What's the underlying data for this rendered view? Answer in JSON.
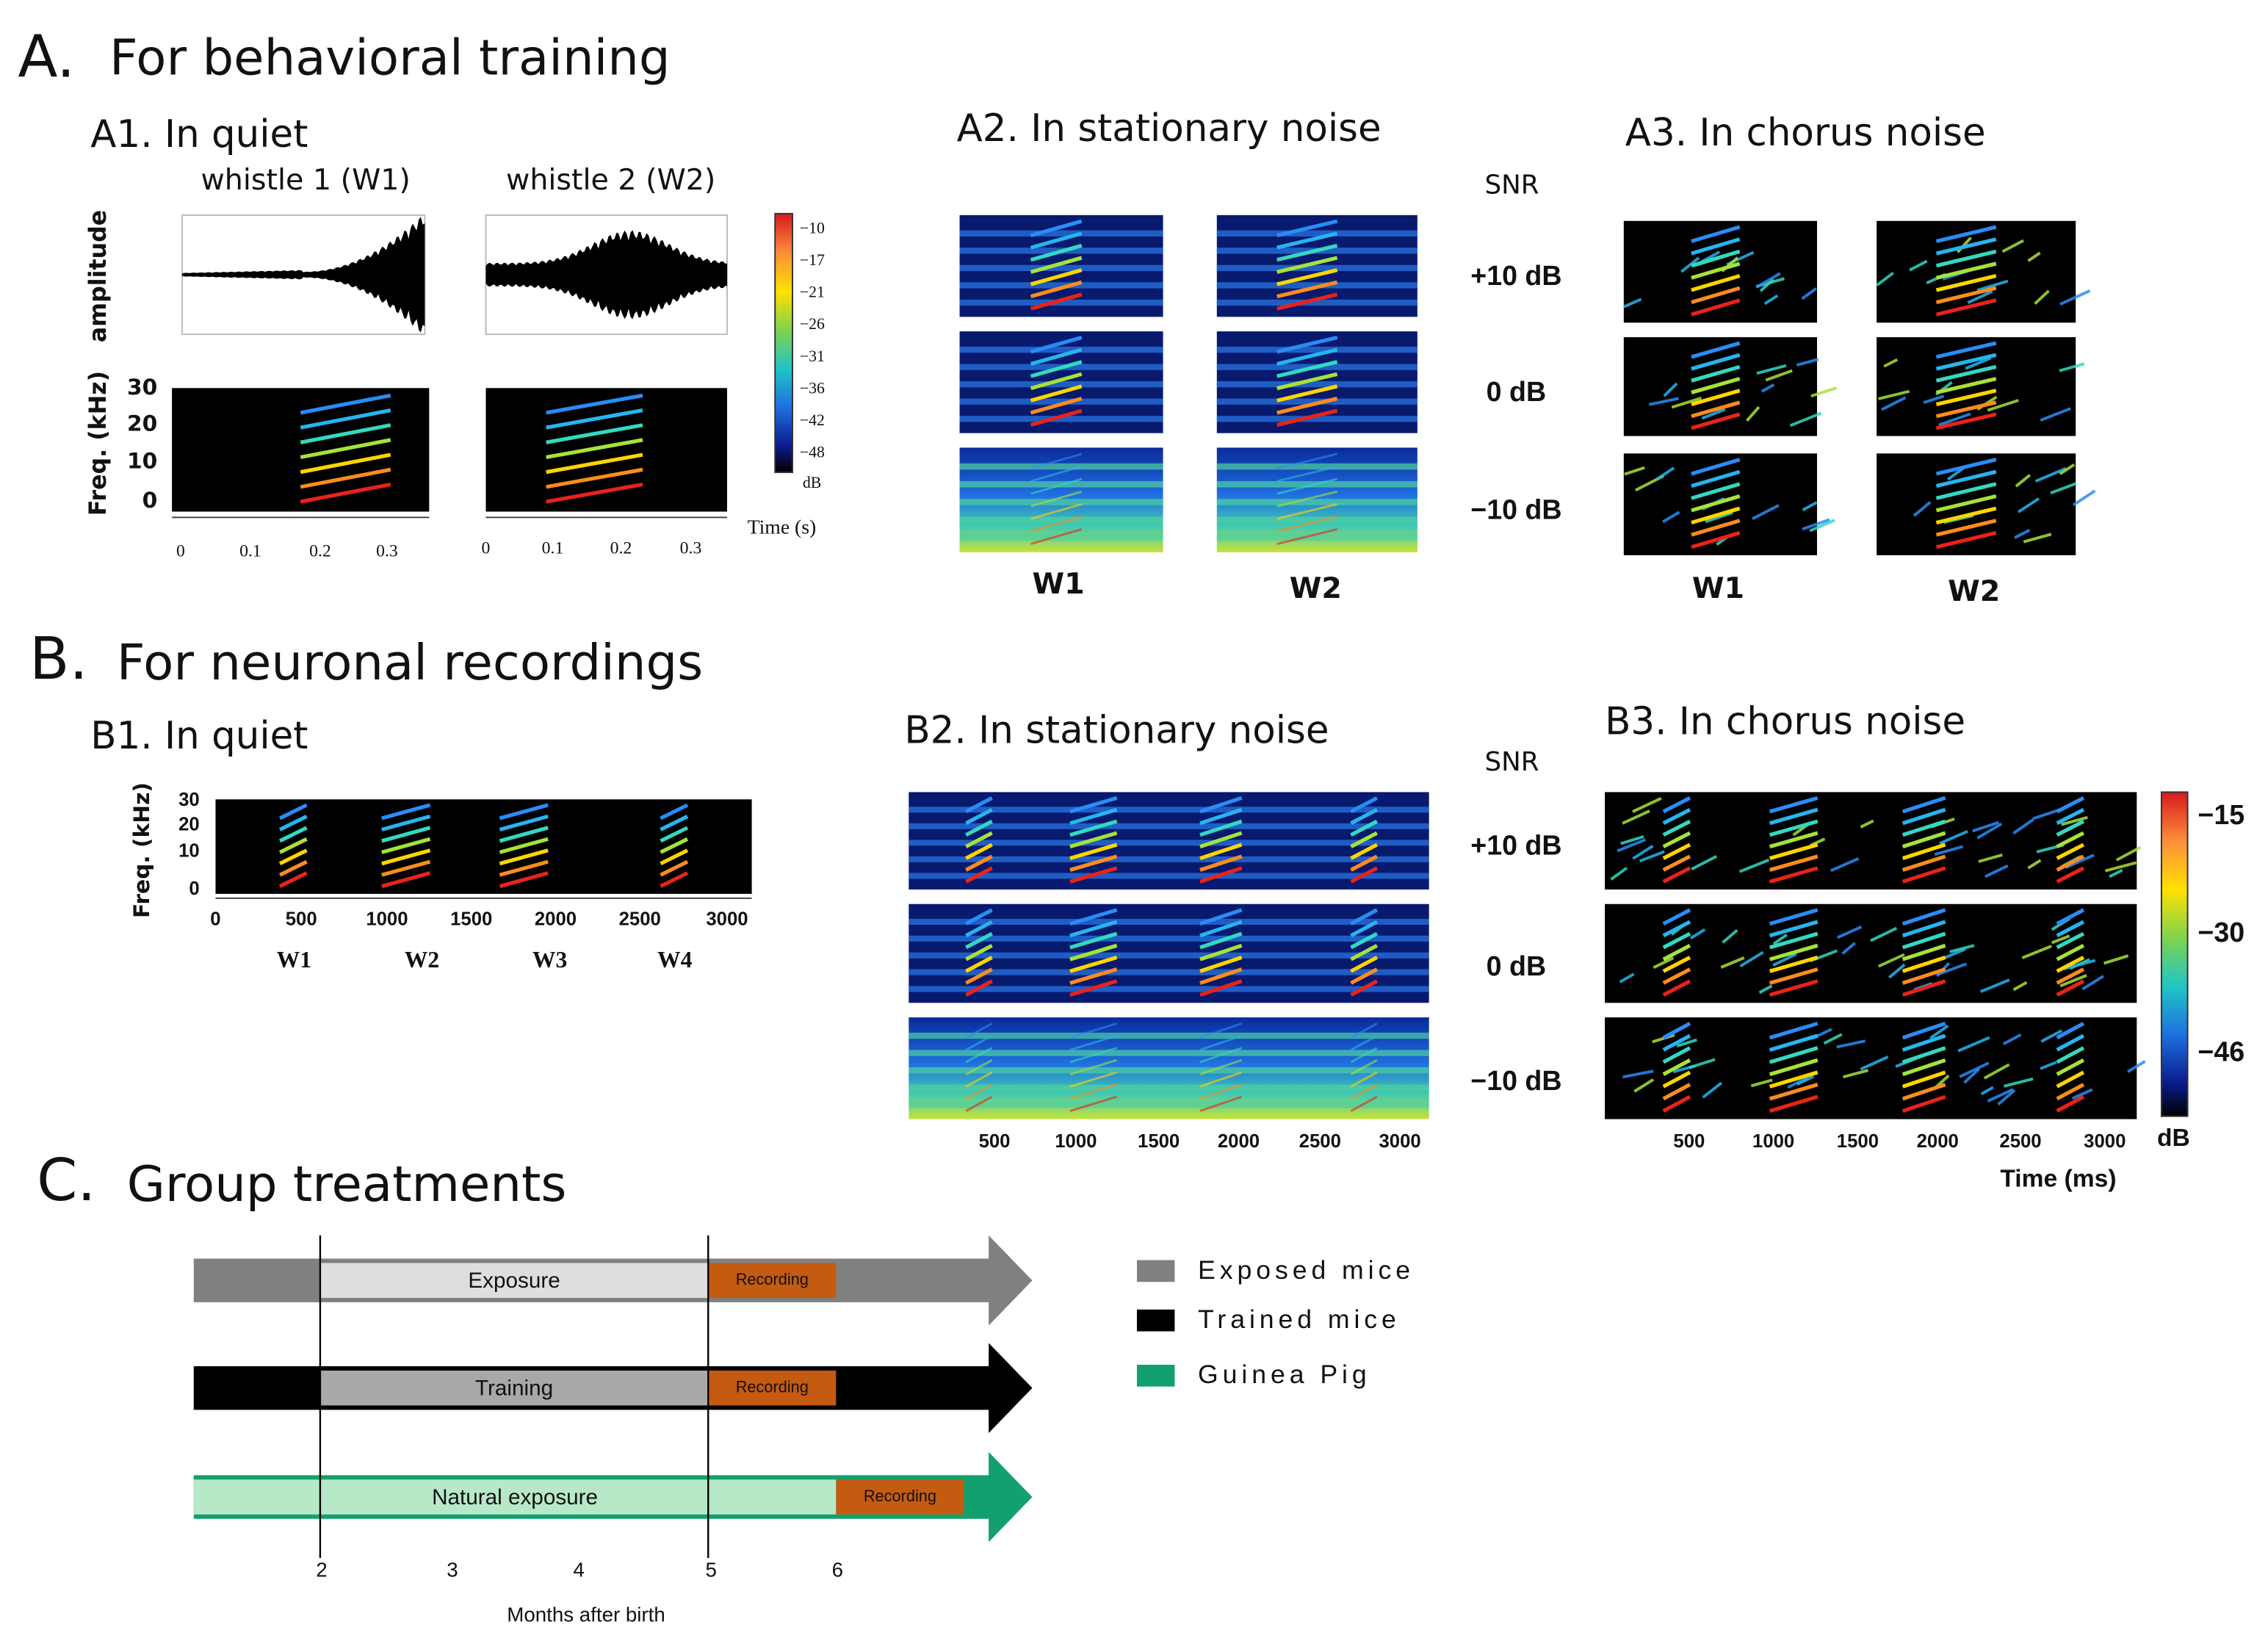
{
  "A": {
    "label": "A.",
    "title": "For behavioral training"
  },
  "A1": {
    "title": "A1. In quiet",
    "whistle_labels": [
      "whistle 1 (W1)",
      "whistle 2 (W2)"
    ],
    "amplitude_label": "amplitude",
    "freq_label": "Freq. (kHz)",
    "freq_ticks": [
      "30",
      "20",
      "10",
      "0"
    ],
    "time_ticks": [
      "0",
      "0.1",
      "0.2",
      "0.3"
    ],
    "time_label": "Time (s)",
    "colorbar_ticks": [
      "−10",
      "−17",
      "−21",
      "−26",
      "−31",
      "−36",
      "−42",
      "−48"
    ],
    "colorbar_unit": "dB"
  },
  "A2": {
    "title": "A2. In stationary noise",
    "snr_label": "SNR",
    "snr_levels": [
      "+10 dB",
      "0 dB",
      "−10 dB"
    ],
    "columns": [
      "W1",
      "W2"
    ]
  },
  "A3": {
    "title": "A3. In chorus noise",
    "columns": [
      "W1",
      "W2"
    ]
  },
  "B": {
    "label": "B.",
    "title": "For neuronal recordings"
  },
  "B1": {
    "title": "B1. In quiet",
    "freq_label": "Freq. (kHz)",
    "freq_ticks": [
      "30",
      "20",
      "10",
      "0"
    ],
    "time_ticks": [
      "0",
      "500",
      "1000",
      "1500",
      "2000",
      "2500",
      "3000"
    ],
    "whistles": [
      "W1",
      "W2",
      "W3",
      "W4"
    ]
  },
  "B2": {
    "title": "B2. In stationary noise",
    "snr_label": "SNR",
    "snr_levels": [
      "+10 dB",
      "0 dB",
      "−10 dB"
    ],
    "time_ticks": [
      "500",
      "1000",
      "1500",
      "2000",
      "2500",
      "3000"
    ]
  },
  "B3": {
    "title": "B3. In chorus noise",
    "time_ticks": [
      "500",
      "1000",
      "1500",
      "2000",
      "2500",
      "3000"
    ],
    "time_label": "Time (ms)",
    "colorbar_ticks": [
      "−15",
      "−30",
      "−46"
    ],
    "colorbar_unit": "dB"
  },
  "C": {
    "label": "C.",
    "title": "Group treatments",
    "bars": [
      {
        "phase": "Exposure",
        "recording": "Recording"
      },
      {
        "phase": "Training",
        "recording": "Recording"
      },
      {
        "phase": "Natural exposure",
        "recording": "Recording"
      }
    ],
    "month_ticks": [
      "2",
      "3",
      "4",
      "5",
      "6"
    ],
    "x_label": "Months after birth",
    "legend": [
      "Exposed mice",
      "Trained mice",
      "Guinea Pig"
    ]
  }
}
